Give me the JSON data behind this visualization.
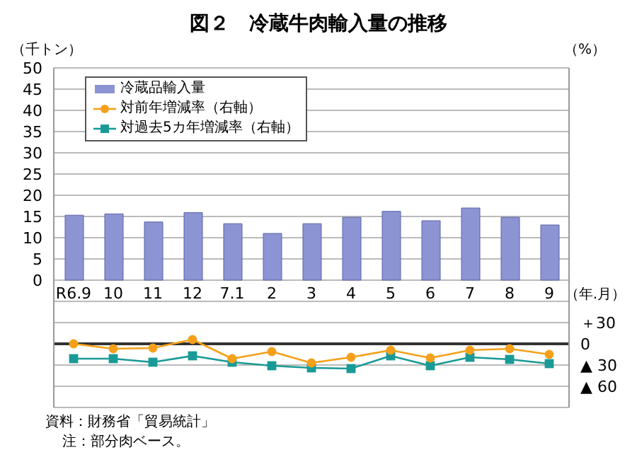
{
  "chart_data": {
    "type": "bar",
    "title": "図２　冷蔵牛肉輸入量の推移",
    "ylabel": "（千トン）",
    "y2label": "（%）",
    "xlabel": "（年.月）",
    "categories": [
      "R6.9",
      "10",
      "11",
      "12",
      "7.1",
      "2",
      "3",
      "4",
      "5",
      "6",
      "7",
      "8",
      "9"
    ],
    "series": [
      {
        "name": "冷蔵品輸入量",
        "color": "#8c94d4",
        "values": [
          15.3,
          15.6,
          13.7,
          15.9,
          13.3,
          11.0,
          13.3,
          14.8,
          16.2,
          14.0,
          17.0,
          14.8,
          13.0
        ]
      },
      {
        "name": "対前年増減率（右軸）",
        "type": "line",
        "axis": "y2",
        "marker": "circle",
        "color": "#f5a01a",
        "values": [
          0,
          -7,
          -6,
          6,
          -21,
          -11,
          -27,
          -19,
          -9,
          -20,
          -9,
          -7,
          -15
        ]
      },
      {
        "name": "対過去5カ年増減率（右軸）",
        "type": "line",
        "axis": "y2",
        "marker": "square",
        "color": "#1a9a96",
        "values": [
          -21,
          -21,
          -26,
          -17,
          -26,
          -31,
          -34,
          -35,
          -17,
          -31,
          -19,
          -22,
          -28
        ]
      }
    ],
    "ylim": [
      -30,
      50
    ],
    "yticks": [
      0,
      5,
      10,
      15,
      20,
      25,
      30,
      35,
      40,
      45,
      50
    ],
    "y2lim": [
      -90,
      390
    ],
    "y2ticks": [
      {
        "value": 60,
        "label": null
      },
      {
        "value": 30,
        "label": "＋30"
      },
      0,
      {
        "value": -30,
        "label": "▲ 30"
      },
      {
        "value": -60,
        "label": "▲ 60"
      },
      {
        "value": -90,
        "label": null
      }
    ],
    "ref_lines": [
      {
        "axis": "y2",
        "value": 0,
        "color": "#333333"
      }
    ],
    "grid": "y",
    "legend": "top left",
    "annotations": [
      "資料：財務省「貿易統計」",
      "注：部分肉ベース。"
    ]
  }
}
